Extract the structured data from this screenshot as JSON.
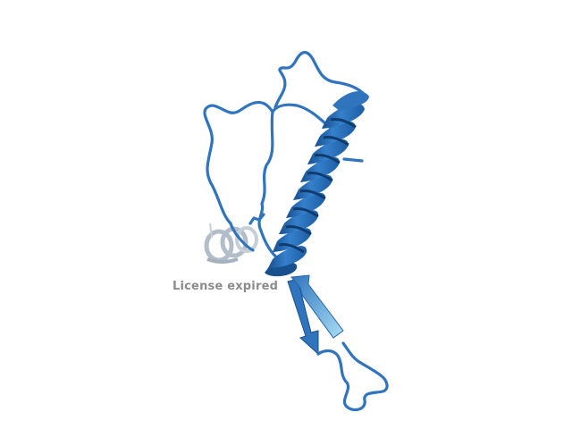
{
  "viewer": {
    "watermark_text": "License expired"
  },
  "colors": {
    "background": "#ffffff",
    "ribbon": "#2f74bd",
    "ribbon_dark": "#174f8f",
    "ribbon_light": "#7fb2e0",
    "strand_tip": "#a8dff5",
    "ghost_helix": "#9aa8b8",
    "watermark": "#8c8c8c"
  },
  "scene": {
    "type": "protein-cartoon",
    "elements": [
      "alpha-helix",
      "loop",
      "beta-strand",
      "background-helix"
    ]
  }
}
